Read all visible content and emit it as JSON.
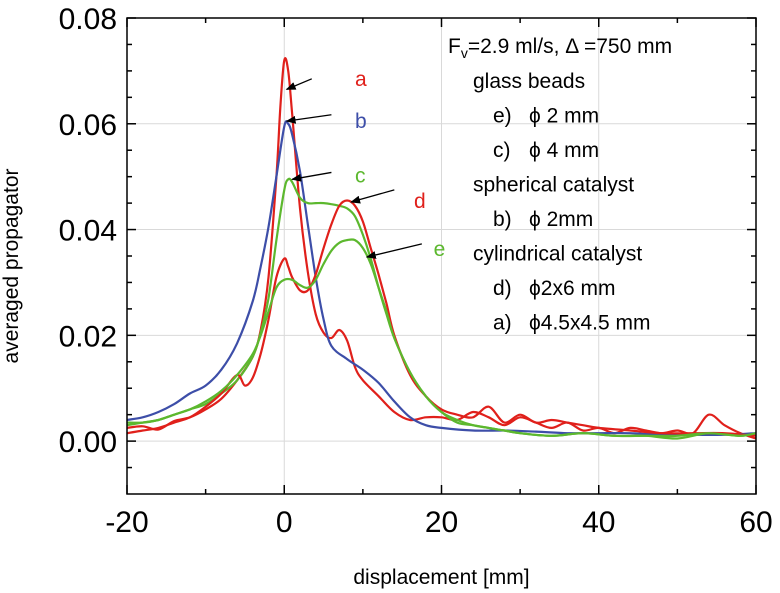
{
  "chart_data": {
    "type": "line",
    "xlabel": "displacement [mm]",
    "ylabel": "averaged propagator",
    "xlim": [
      -20,
      60
    ],
    "ylim": [
      -0.01,
      0.08
    ],
    "xticks": [
      -20,
      0,
      20,
      40,
      60
    ],
    "xtick_labels": [
      "-20",
      "0",
      "20",
      "40",
      "60"
    ],
    "yticks": [
      0.0,
      0.02,
      0.04,
      0.06,
      0.08
    ],
    "ytick_labels": [
      "0.00",
      "0.02",
      "0.04",
      "0.06",
      "0.08"
    ],
    "grid": true,
    "legend": {
      "placement": "top-right",
      "header": {
        "prefix": "F",
        "sub": "v",
        "text": "=2.9 ml/s, Δ =750 mm"
      },
      "lines": [
        {
          "kind": "group",
          "text": "glass beads"
        },
        {
          "kind": "entry",
          "key": "e)",
          "text": "ϕ 2 mm",
          "color": "#5cb82e"
        },
        {
          "kind": "entry",
          "key": "c)",
          "text": "ϕ 4 mm",
          "color": "#5cb82e"
        },
        {
          "kind": "group",
          "text": "spherical catalyst"
        },
        {
          "kind": "entry",
          "key": "b)",
          "text": "ϕ 2mm",
          "color": "#3d4ea8"
        },
        {
          "kind": "group",
          "text": "cylindrical catalyst"
        },
        {
          "kind": "entry",
          "key": "d)",
          "text": "ϕ2x6 mm",
          "color": "#e0201b"
        },
        {
          "kind": "entry",
          "key": "a)",
          "text": "ϕ4.5x4.5 mm",
          "color": "#e0201b"
        }
      ]
    },
    "series": [
      {
        "id": "a",
        "color": "#e0201b",
        "arrow_from": [
          3.5,
          0.0685
        ],
        "arrow_to": [
          0.3,
          0.0665
        ],
        "label_at": [
          9.0,
          0.0685
        ],
        "points": [
          [
            -20,
            0.0025
          ],
          [
            -18,
            0.0028
          ],
          [
            -16,
            0.0022
          ],
          [
            -14,
            0.0038
          ],
          [
            -12,
            0.0045
          ],
          [
            -10,
            0.006
          ],
          [
            -8,
            0.008
          ],
          [
            -6,
            0.0115
          ],
          [
            -4,
            0.016
          ],
          [
            -3,
            0.021
          ],
          [
            -2,
            0.031
          ],
          [
            -1,
            0.05
          ],
          [
            -0.5,
            0.063
          ],
          [
            0,
            0.072
          ],
          [
            0.5,
            0.07
          ],
          [
            1,
            0.062
          ],
          [
            2,
            0.044
          ],
          [
            3,
            0.032
          ],
          [
            4,
            0.024
          ],
          [
            5,
            0.0205
          ],
          [
            6,
            0.0195
          ],
          [
            7,
            0.021
          ],
          [
            8,
            0.019
          ],
          [
            9,
            0.014
          ],
          [
            10,
            0.0115
          ],
          [
            12,
            0.0085
          ],
          [
            14,
            0.0055
          ],
          [
            16,
            0.004
          ],
          [
            18,
            0.0045
          ],
          [
            20,
            0.0045
          ],
          [
            22,
            0.004
          ],
          [
            24,
            0.0055
          ],
          [
            26,
            0.0045
          ],
          [
            28,
            0.003
          ],
          [
            30,
            0.0045
          ],
          [
            32,
            0.0035
          ],
          [
            34,
            0.0025
          ],
          [
            36,
            0.0035
          ],
          [
            38,
            0.002
          ],
          [
            40,
            0.0025
          ],
          [
            42,
            0.0015
          ],
          [
            44,
            0.0025
          ],
          [
            46,
            0.002
          ],
          [
            48,
            0.0015
          ],
          [
            50,
            0.002
          ],
          [
            52,
            0.0015
          ],
          [
            54,
            0.005
          ],
          [
            56,
            0.003
          ],
          [
            58,
            0.0015
          ],
          [
            60,
            0.0005
          ]
        ]
      },
      {
        "id": "b",
        "color": "#3d4ea8",
        "arrow_from": [
          6.0,
          0.0617
        ],
        "arrow_to": [
          0.3,
          0.0605
        ],
        "label_at": [
          9.0,
          0.0605
        ],
        "points": [
          [
            -20,
            0.004
          ],
          [
            -18,
            0.0045
          ],
          [
            -16,
            0.0055
          ],
          [
            -14,
            0.007
          ],
          [
            -12,
            0.009
          ],
          [
            -10,
            0.0105
          ],
          [
            -8,
            0.0135
          ],
          [
            -6,
            0.0185
          ],
          [
            -4,
            0.0265
          ],
          [
            -3,
            0.033
          ],
          [
            -2,
            0.0405
          ],
          [
            -1,
            0.05
          ],
          [
            0,
            0.0595
          ],
          [
            0.5,
            0.06
          ],
          [
            1,
            0.058
          ],
          [
            2,
            0.051
          ],
          [
            3,
            0.041
          ],
          [
            4,
            0.031
          ],
          [
            5,
            0.023
          ],
          [
            6,
            0.018
          ],
          [
            8,
            0.0155
          ],
          [
            10,
            0.0135
          ],
          [
            12,
            0.011
          ],
          [
            14,
            0.0075
          ],
          [
            16,
            0.0045
          ],
          [
            18,
            0.003
          ],
          [
            20,
            0.0025
          ],
          [
            24,
            0.002
          ],
          [
            28,
            0.002
          ],
          [
            32,
            0.0018
          ],
          [
            36,
            0.0015
          ],
          [
            40,
            0.0015
          ],
          [
            44,
            0.0015
          ],
          [
            48,
            0.0012
          ],
          [
            52,
            0.0012
          ],
          [
            56,
            0.0012
          ],
          [
            60,
            0.0015
          ]
        ]
      },
      {
        "id": "c",
        "color": "#5cb82e",
        "arrow_from": [
          6.0,
          0.0508
        ],
        "arrow_to": [
          1.0,
          0.0495
        ],
        "label_at": [
          9.0,
          0.0502
        ],
        "points": [
          [
            -20,
            0.0035
          ],
          [
            -18,
            0.0035
          ],
          [
            -16,
            0.004
          ],
          [
            -14,
            0.005
          ],
          [
            -12,
            0.006
          ],
          [
            -10,
            0.007
          ],
          [
            -8,
            0.009
          ],
          [
            -6,
            0.0115
          ],
          [
            -4,
            0.016
          ],
          [
            -3,
            0.0205
          ],
          [
            -2,
            0.027
          ],
          [
            -1,
            0.038
          ],
          [
            0,
            0.0475
          ],
          [
            0.5,
            0.0495
          ],
          [
            1,
            0.049
          ],
          [
            2,
            0.046
          ],
          [
            3,
            0.045
          ],
          [
            4,
            0.045
          ],
          [
            5,
            0.045
          ],
          [
            6,
            0.0448
          ],
          [
            7,
            0.0445
          ],
          [
            8,
            0.044
          ],
          [
            9,
            0.0425
          ],
          [
            10,
            0.039
          ],
          [
            11,
            0.0345
          ],
          [
            12,
            0.029
          ],
          [
            13,
            0.024
          ],
          [
            14,
            0.0195
          ],
          [
            16,
            0.013
          ],
          [
            18,
            0.0085
          ],
          [
            20,
            0.0055
          ],
          [
            22,
            0.0035
          ],
          [
            24,
            0.003
          ],
          [
            26,
            0.0025
          ],
          [
            28,
            0.002
          ],
          [
            30,
            0.0015
          ],
          [
            34,
            0.001
          ],
          [
            38,
            0.0015
          ],
          [
            42,
            0.001
          ],
          [
            46,
            0.001
          ],
          [
            50,
            0.0005
          ],
          [
            54,
            0.0015
          ],
          [
            58,
            0.001
          ],
          [
            60,
            0.0015
          ]
        ]
      },
      {
        "id": "d",
        "color": "#e0201b",
        "arrow_from": [
          14.0,
          0.0475
        ],
        "arrow_to": [
          8.5,
          0.0452
        ],
        "label_at": [
          16.5,
          0.0454
        ],
        "points": [
          [
            -20,
            0.0015
          ],
          [
            -18,
            0.002
          ],
          [
            -16,
            0.0025
          ],
          [
            -14,
            0.0035
          ],
          [
            -12,
            0.0045
          ],
          [
            -10,
            0.0065
          ],
          [
            -8,
            0.009
          ],
          [
            -6,
            0.0125
          ],
          [
            -5,
            0.0105
          ],
          [
            -4,
            0.012
          ],
          [
            -3,
            0.0165
          ],
          [
            -2,
            0.023
          ],
          [
            -1,
            0.031
          ],
          [
            0,
            0.0345
          ],
          [
            0.5,
            0.033
          ],
          [
            1,
            0.031
          ],
          [
            2,
            0.0285
          ],
          [
            3,
            0.0285
          ],
          [
            4,
            0.0315
          ],
          [
            5,
            0.0365
          ],
          [
            6,
            0.041
          ],
          [
            7,
            0.0445
          ],
          [
            8,
            0.0455
          ],
          [
            9,
            0.0445
          ],
          [
            10,
            0.0415
          ],
          [
            11,
            0.0365
          ],
          [
            12,
            0.0315
          ],
          [
            13,
            0.026
          ],
          [
            14,
            0.02
          ],
          [
            16,
            0.0125
          ],
          [
            18,
            0.0085
          ],
          [
            20,
            0.006
          ],
          [
            22,
            0.005
          ],
          [
            24,
            0.0045
          ],
          [
            26,
            0.0065
          ],
          [
            28,
            0.0035
          ],
          [
            30,
            0.005
          ],
          [
            32,
            0.0035
          ],
          [
            34,
            0.004
          ],
          [
            36,
            0.0035
          ],
          [
            38,
            0.003
          ],
          [
            40,
            0.0025
          ],
          [
            44,
            0.002
          ],
          [
            48,
            0.0015
          ],
          [
            52,
            0.0015
          ],
          [
            56,
            0.0015
          ],
          [
            60,
            0.001
          ]
        ]
      },
      {
        "id": "e",
        "color": "#5cb82e",
        "arrow_from": [
          17.5,
          0.0373
        ],
        "arrow_to": [
          10.5,
          0.0348
        ],
        "label_at": [
          19.0,
          0.0363
        ],
        "points": [
          [
            -20,
            0.003
          ],
          [
            -18,
            0.0035
          ],
          [
            -16,
            0.004
          ],
          [
            -14,
            0.005
          ],
          [
            -12,
            0.006
          ],
          [
            -10,
            0.0075
          ],
          [
            -8,
            0.0095
          ],
          [
            -6,
            0.0125
          ],
          [
            -4,
            0.0165
          ],
          [
            -3,
            0.02
          ],
          [
            -2,
            0.0245
          ],
          [
            -1,
            0.029
          ],
          [
            0,
            0.0305
          ],
          [
            1,
            0.0305
          ],
          [
            2,
            0.0295
          ],
          [
            3,
            0.029
          ],
          [
            4,
            0.0305
          ],
          [
            5,
            0.0335
          ],
          [
            6,
            0.036
          ],
          [
            7,
            0.0375
          ],
          [
            8,
            0.038
          ],
          [
            9,
            0.038
          ],
          [
            10,
            0.0365
          ],
          [
            11,
            0.0335
          ],
          [
            12,
            0.029
          ],
          [
            13,
            0.0245
          ],
          [
            14,
            0.0195
          ],
          [
            16,
            0.013
          ],
          [
            18,
            0.0085
          ],
          [
            20,
            0.0055
          ],
          [
            22,
            0.004
          ],
          [
            24,
            0.003
          ],
          [
            26,
            0.0025
          ],
          [
            28,
            0.002
          ],
          [
            30,
            0.0015
          ],
          [
            34,
            0.001
          ],
          [
            38,
            0.0015
          ],
          [
            42,
            0.001
          ],
          [
            46,
            0.001
          ],
          [
            50,
            0.001
          ],
          [
            54,
            0.0015
          ],
          [
            58,
            0.001
          ],
          [
            60,
            0.0015
          ]
        ]
      }
    ]
  }
}
